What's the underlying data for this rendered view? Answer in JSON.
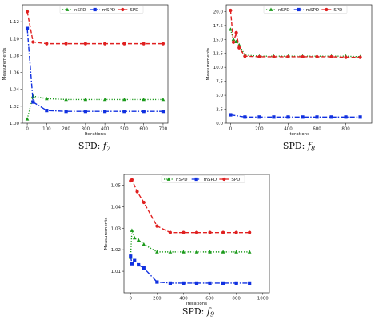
{
  "chart_data": [
    {
      "type": "line",
      "caption": "SPD: f7",
      "caption_prefix": "SPD: ",
      "caption_func": "f",
      "caption_sub": "7",
      "xlabel": "Iterations",
      "ylabel": "Measurements",
      "xlim": [
        -25,
        725
      ],
      "ylim": [
        1.0,
        1.14
      ],
      "xticks": [
        0,
        100,
        200,
        300,
        400,
        500,
        600,
        700
      ],
      "yticks": [
        1.0,
        1.02,
        1.04,
        1.06,
        1.08,
        1.1,
        1.12
      ],
      "ytick_labels": [
        "1.00",
        "1.02",
        "1.04",
        "1.06",
        "1.08",
        "1.10",
        "1.12"
      ],
      "legend": "top-center",
      "grid": false,
      "series": [
        {
          "name": "nSPD",
          "color": "#1a9a1a",
          "dash": "1.2,2",
          "marker": "triangle",
          "x": [
            0,
            30,
            100,
            200,
            300,
            400,
            500,
            600,
            700
          ],
          "y": [
            1.005,
            1.032,
            1.029,
            1.028,
            1.028,
            1.028,
            1.028,
            1.028,
            1.028
          ]
        },
        {
          "name": "mSPD",
          "color": "#1030e0",
          "dash": "6,2,1.5,2",
          "marker": "square",
          "x": [
            0,
            30,
            100,
            200,
            300,
            400,
            500,
            600,
            700
          ],
          "y": [
            1.112,
            1.025,
            1.015,
            1.014,
            1.014,
            1.014,
            1.014,
            1.014,
            1.014
          ]
        },
        {
          "name": "SPD",
          "color": "#e02020",
          "dash": "5,2.5",
          "marker": "circle",
          "x": [
            0,
            30,
            100,
            200,
            300,
            400,
            500,
            600,
            700
          ],
          "y": [
            1.132,
            1.096,
            1.094,
            1.094,
            1.094,
            1.094,
            1.094,
            1.094,
            1.094
          ]
        }
      ]
    },
    {
      "type": "line",
      "caption": "SPD: f8",
      "caption_prefix": "SPD: ",
      "caption_func": "f",
      "caption_sub": "8",
      "xlabel": "Iterations",
      "ylabel": "Measurements",
      "xlim": [
        -30,
        980
      ],
      "ylim": [
        0,
        21.2
      ],
      "xticks": [
        0,
        200,
        400,
        600,
        800
      ],
      "yticks": [
        0,
        2.5,
        5,
        7.5,
        10,
        12.5,
        15,
        17.5,
        20
      ],
      "ytick_labels": [
        "0.0",
        "2.5",
        "5.0",
        "7.5",
        "10.0",
        "12.5",
        "15.0",
        "17.5",
        "20.0"
      ],
      "legend": "top-center",
      "grid": false,
      "series": [
        {
          "name": "nSPD",
          "color": "#1a9a1a",
          "dash": "1.2,2",
          "marker": "triangle",
          "x": [
            0,
            20,
            40,
            60,
            100,
            200,
            300,
            400,
            500,
            600,
            700,
            800,
            900
          ],
          "y": [
            16.8,
            15.0,
            14.6,
            14.0,
            12.2,
            12.0,
            12.0,
            12.0,
            12.0,
            12.0,
            12.0,
            12.0,
            11.9
          ]
        },
        {
          "name": "mSPD",
          "color": "#1030e0",
          "dash": "6,2,1.5,2",
          "marker": "square",
          "x": [
            0,
            100,
            200,
            300,
            400,
            500,
            600,
            700,
            800,
            900
          ],
          "y": [
            1.5,
            1.1,
            1.1,
            1.1,
            1.1,
            1.1,
            1.1,
            1.1,
            1.1,
            1.1
          ]
        },
        {
          "name": "SPD",
          "color": "#e02020",
          "dash": "5,2.5",
          "marker": "circle",
          "x": [
            0,
            20,
            40,
            60,
            100,
            200,
            300,
            400,
            500,
            600,
            700,
            800,
            900
          ],
          "y": [
            20.2,
            14.5,
            16.2,
            13.5,
            12.0,
            11.9,
            11.9,
            11.9,
            11.9,
            11.9,
            11.9,
            11.8,
            11.8
          ]
        }
      ]
    },
    {
      "type": "line",
      "caption": "SPD: f9",
      "caption_prefix": "SPD: ",
      "caption_func": "f",
      "caption_sub": "9",
      "xlabel": "Iterations",
      "ylabel": "Measurements",
      "xlim": [
        -50,
        1050
      ],
      "ylim": [
        1.0,
        1.055
      ],
      "xticks": [
        0,
        200,
        400,
        600,
        800,
        1000
      ],
      "yticks": [
        1.01,
        1.02,
        1.03,
        1.04,
        1.05
      ],
      "ytick_labels": [
        "1.01",
        "1.02",
        "1.03",
        "1.04",
        "1.05"
      ],
      "legend": "top-center",
      "grid": false,
      "series": [
        {
          "name": "nSPD",
          "color": "#1a9a1a",
          "dash": "1.2,2",
          "marker": "triangle",
          "x": [
            0,
            10,
            30,
            60,
            100,
            200,
            300,
            400,
            500,
            600,
            700,
            800,
            900
          ],
          "y": [
            1.0165,
            1.029,
            1.0255,
            1.0245,
            1.0225,
            1.019,
            1.019,
            1.019,
            1.019,
            1.019,
            1.019,
            1.019,
            1.019
          ]
        },
        {
          "name": "mSPD",
          "color": "#1030e0",
          "dash": "6,2,1.5,2",
          "marker": "square",
          "x": [
            0,
            10,
            30,
            60,
            100,
            200,
            300,
            400,
            500,
            600,
            700,
            800,
            900
          ],
          "y": [
            1.017,
            1.0135,
            1.015,
            1.013,
            1.0115,
            1.005,
            1.0045,
            1.0045,
            1.0045,
            1.0045,
            1.0045,
            1.0045,
            1.0045
          ]
        },
        {
          "name": "SPD",
          "color": "#e02020",
          "dash": "5,2.5",
          "marker": "circle",
          "x": [
            0,
            10,
            50,
            100,
            200,
            300,
            400,
            500,
            600,
            700,
            800,
            900
          ],
          "y": [
            1.052,
            1.0525,
            1.047,
            1.042,
            1.031,
            1.028,
            1.028,
            1.028,
            1.028,
            1.028,
            1.028,
            1.028
          ]
        }
      ]
    }
  ]
}
